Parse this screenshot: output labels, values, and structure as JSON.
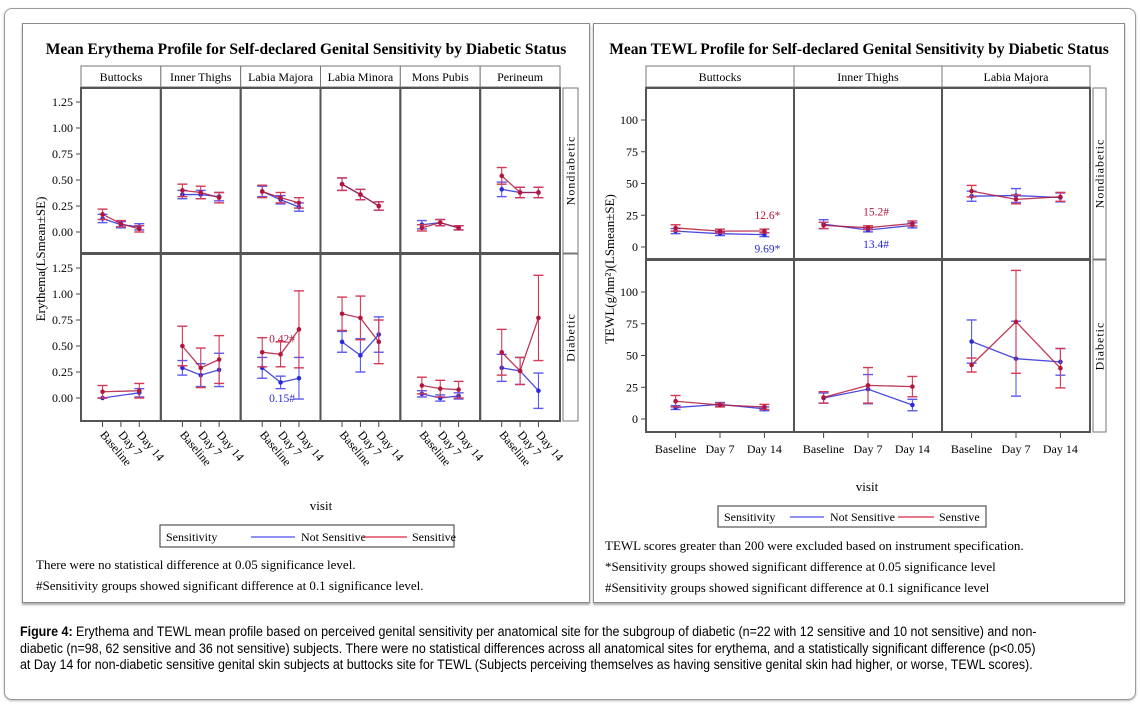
{
  "colors": {
    "not_sensitive": "#2b2bd9",
    "sensitive": "#b3163a",
    "frame": "#555555"
  },
  "caption": {
    "label": "Figure 4:",
    "text": " Erythema and TEWL mean profile based on perceived genital sensitivity per anatomical site for the subgroup of diabetic (n=22 with 12 sensitive and 10 not sensitive) and non-diabetic (n=98, 62 sensitive and 36 not sensitive) subjects.  There were no statistical differences across all anatomical sites for erythema, and a statistically significant difference (p<0.05) at Day 14 for non-diabetic sensitive genital skin subjects at buttocks site for TEWL (Subjects perceiving themselves as having sensitive genital skin had higher, or worse, TEWL scores)."
  },
  "chart_data": [
    {
      "type": "line",
      "title": "Mean Erythema Profile for Self-declared Genital Sensitivity by Diabetic Status",
      "xlabel": "visit",
      "ylabel": "Erythema(LSmean±SE)",
      "ylim": [
        -0.15,
        1.35
      ],
      "yticks": [
        "0.00",
        "0.25",
        "0.50",
        "0.75",
        "1.00",
        "1.25"
      ],
      "ytick_values": [
        0,
        0.25,
        0.5,
        0.75,
        1.0,
        1.25
      ],
      "x": [
        "Baseline",
        "Day 7",
        "Day 14"
      ],
      "x_tick_style": "rotated",
      "columns": [
        "Buttocks",
        "Inner Thighs",
        "Labia Majora",
        "Labia Minora",
        "Mons Pubis",
        "Perineum"
      ],
      "rows": [
        "Nondiabetic",
        "Diabetic"
      ],
      "legend": {
        "title": "Sensitivity",
        "entries": [
          "Not Sensitive",
          "Sensitive"
        ],
        "placement": "bottom"
      },
      "notes": [
        "There were no statistical difference at 0.05 significance level.",
        "#Sensitivity groups showed significant difference at 0.1 significance level."
      ],
      "panels": [
        {
          "row": "Nondiabetic",
          "column": "Buttocks",
          "series": [
            {
              "name": "Not Sensitive",
              "mean": [
                0.13,
                0.07,
                0.05
              ],
              "se": [
                0.04,
                0.03,
                0.03
              ]
            },
            {
              "name": "Sensitive",
              "mean": [
                0.17,
                0.08,
                0.03
              ],
              "se": [
                0.05,
                0.03,
                0.03
              ]
            }
          ]
        },
        {
          "row": "Nondiabetic",
          "column": "Inner Thighs",
          "series": [
            {
              "name": "Not Sensitive",
              "mean": [
                0.36,
                0.36,
                0.34
              ],
              "se": [
                0.04,
                0.04,
                0.04
              ]
            },
            {
              "name": "Sensitive",
              "mean": [
                0.4,
                0.38,
                0.33
              ],
              "se": [
                0.06,
                0.06,
                0.05
              ]
            }
          ]
        },
        {
          "row": "Nondiabetic",
          "column": "Labia Majora",
          "series": [
            {
              "name": "Not Sensitive",
              "mean": [
                0.39,
                0.31,
                0.24
              ],
              "se": [
                0.05,
                0.04,
                0.04
              ]
            },
            {
              "name": "Sensitive",
              "mean": [
                0.39,
                0.33,
                0.28
              ],
              "se": [
                0.06,
                0.05,
                0.05
              ]
            }
          ]
        },
        {
          "row": "Nondiabetic",
          "column": "Labia Minora",
          "series": [
            {
              "name": "Not Sensitive",
              "mean": [
                0.46,
                0.36,
                0.25
              ],
              "se": [
                0.06,
                0.05,
                0.04
              ]
            },
            {
              "name": "Sensitive",
              "mean": [
                0.46,
                0.36,
                0.25
              ],
              "se": [
                0.06,
                0.05,
                0.04
              ]
            }
          ]
        },
        {
          "row": "Nondiabetic",
          "column": "Mons Pubis",
          "series": [
            {
              "name": "Not Sensitive",
              "mean": [
                0.07,
                0.09,
                0.04
              ],
              "se": [
                0.04,
                0.03,
                0.02
              ]
            },
            {
              "name": "Sensitive",
              "mean": [
                0.04,
                0.09,
                0.04
              ],
              "se": [
                0.03,
                0.03,
                0.02
              ]
            }
          ]
        },
        {
          "row": "Nondiabetic",
          "column": "Perineum",
          "series": [
            {
              "name": "Not Sensitive",
              "mean": [
                0.41,
                0.38,
                0.38
              ],
              "se": [
                0.07,
                0.05,
                0.05
              ]
            },
            {
              "name": "Sensitive",
              "mean": [
                0.54,
                0.38,
                0.38
              ],
              "se": [
                0.08,
                0.05,
                0.05
              ]
            }
          ]
        },
        {
          "row": "Diabetic",
          "column": "Buttocks",
          "series": [
            {
              "name": "Not Sensitive",
              "mean": [
                0.0,
                null,
                0.05
              ],
              "se": [
                0.0,
                null,
                0.04
              ]
            },
            {
              "name": "Sensitive",
              "mean": [
                0.06,
                null,
                0.07
              ],
              "se": [
                0.06,
                null,
                0.07
              ]
            }
          ]
        },
        {
          "row": "Diabetic",
          "column": "Inner Thighs",
          "series": [
            {
              "name": "Not Sensitive",
              "mean": [
                0.29,
                0.22,
                0.27
              ],
              "se": [
                0.07,
                0.11,
                0.16
              ]
            },
            {
              "name": "Sensitive",
              "mean": [
                0.5,
                0.29,
                0.37
              ],
              "se": [
                0.19,
                0.19,
                0.23
              ]
            }
          ]
        },
        {
          "row": "Diabetic",
          "column": "Labia Majora",
          "series": [
            {
              "name": "Not Sensitive",
              "mean": [
                0.29,
                0.15,
                0.19
              ],
              "se": [
                0.1,
                0.06,
                0.2
              ]
            },
            {
              "name": "Sensitive",
              "mean": [
                0.44,
                0.42,
                0.66
              ],
              "se": [
                0.14,
                0.12,
                0.37
              ]
            }
          ],
          "annotations": [
            {
              "text": "0.42#",
              "series": "Sensitive"
            },
            {
              "text": "0.15#",
              "series": "Not Sensitive"
            }
          ]
        },
        {
          "row": "Diabetic",
          "column": "Labia Minora",
          "series": [
            {
              "name": "Not Sensitive",
              "mean": [
                0.54,
                0.41,
                0.61
              ],
              "se": [
                0.1,
                0.16,
                0.17
              ]
            },
            {
              "name": "Sensitive",
              "mean": [
                0.81,
                0.77,
                0.54
              ],
              "se": [
                0.16,
                0.21,
                0.21
              ]
            }
          ]
        },
        {
          "row": "Diabetic",
          "column": "Mons Pubis",
          "series": [
            {
              "name": "Not Sensitive",
              "mean": [
                0.04,
                0.0,
                0.02
              ],
              "se": [
                0.03,
                0.03,
                0.03
              ]
            },
            {
              "name": "Sensitive",
              "mean": [
                0.12,
                0.09,
                0.08
              ],
              "se": [
                0.08,
                0.08,
                0.08
              ]
            }
          ]
        },
        {
          "row": "Diabetic",
          "column": "Perineum",
          "series": [
            {
              "name": "Not Sensitive",
              "mean": [
                0.29,
                0.26,
                0.07
              ],
              "se": [
                0.13,
                0.13,
                0.17
              ]
            },
            {
              "name": "Sensitive",
              "mean": [
                0.44,
                0.26,
                0.77
              ],
              "se": [
                0.22,
                0.13,
                0.41
              ]
            }
          ]
        }
      ]
    },
    {
      "type": "line",
      "title": "Mean TEWL Profile for Self-declared Genital Sensitivity by Diabetic Status",
      "xlabel": "visit",
      "ylabel": "TEWL(g/hm²)(LSmean±SE)",
      "ylim": [
        -10,
        125
      ],
      "yticks": [
        "0",
        "25",
        "50",
        "75",
        "100"
      ],
      "ytick_values": [
        0,
        25,
        50,
        75,
        100
      ],
      "x": [
        "Baseline",
        "Day 7",
        "Day 14"
      ],
      "x_tick_style": "horizontal",
      "columns": [
        "Buttocks",
        "Inner Thighs",
        "Labia Majora"
      ],
      "rows": [
        "Nondiabetic",
        "Diabetic"
      ],
      "legend": {
        "title": "Sensitivity",
        "entries": [
          "Not Sensitive",
          "Senstive"
        ],
        "placement": "bottom"
      },
      "notes": [
        "TEWL scores greater than 200 were excluded based on instrument specification.",
        "*Sensitivity groups showed significant difference at 0.05 significance level",
        "#Sensitivity groups showed significant difference at 0.1 significance level"
      ],
      "panels": [
        {
          "row": "Nondiabetic",
          "column": "Buttocks",
          "series": [
            {
              "name": "Not Sensitive",
              "mean": [
                12.5,
                10.5,
                9.69
              ],
              "se": [
                2,
                1.5,
                1.5
              ]
            },
            {
              "name": "Sensitive",
              "mean": [
                15.0,
                12.5,
                12.6
              ],
              "se": [
                2.5,
                1.5,
                1.5
              ]
            }
          ],
          "annotations": [
            {
              "text": "12.6*",
              "series": "Sensitive"
            },
            {
              "text": "9.69*",
              "series": "Not Sensitive"
            }
          ]
        },
        {
          "row": "Nondiabetic",
          "column": "Inner Thighs",
          "series": [
            {
              "name": "Not Sensitive",
              "mean": [
                18.0,
                13.4,
                17.0
              ],
              "se": [
                3.5,
                1.5,
                2.0
              ]
            },
            {
              "name": "Sensitive",
              "mean": [
                17.0,
                15.2,
                18.5
              ],
              "se": [
                2.5,
                1.5,
                2.0
              ]
            }
          ],
          "annotations": [
            {
              "text": "15.2#",
              "series": "Sensitive"
            },
            {
              "text": "13.4#",
              "series": "Not Sensitive"
            }
          ]
        },
        {
          "row": "Nondiabetic",
          "column": "Labia Majora",
          "series": [
            {
              "name": "Not Sensitive",
              "mean": [
                40.0,
                40.5,
                39.0
              ],
              "se": [
                4,
                5.5,
                3.5
              ]
            },
            {
              "name": "Sensitive",
              "mean": [
                44.0,
                37.5,
                39.5
              ],
              "se": [
                4.5,
                3.5,
                3.5
              ]
            }
          ]
        },
        {
          "row": "Diabetic",
          "column": "Buttocks",
          "series": [
            {
              "name": "Not Sensitive",
              "mean": [
                9.0,
                11.5,
                8.0
              ],
              "se": [
                1.5,
                1.5,
                1.5
              ]
            },
            {
              "name": "Sensitive",
              "mean": [
                14.0,
                11.0,
                9.5
              ],
              "se": [
                4.5,
                1.5,
                2.0
              ]
            }
          ]
        },
        {
          "row": "Diabetic",
          "column": "Inner Thighs",
          "series": [
            {
              "name": "Not Sensitive",
              "mean": [
                16.5,
                23.5,
                11.0
              ],
              "se": [
                4,
                11.5,
                4.5
              ]
            },
            {
              "name": "Sensitive",
              "mean": [
                17.0,
                26.5,
                25.5
              ],
              "se": [
                4.5,
                14,
                8
              ]
            }
          ]
        },
        {
          "row": "Diabetic",
          "column": "Labia Majora",
          "series": [
            {
              "name": "Not Sensitive",
              "mean": [
                61.0,
                47.5,
                45.0
              ],
              "se": [
                17,
                29.5,
                10.5
              ]
            },
            {
              "name": "Sensitive",
              "mean": [
                42.5,
                76.5,
                40.0
              ],
              "se": [
                5.5,
                40.5,
                15.5
              ]
            }
          ]
        }
      ]
    }
  ]
}
